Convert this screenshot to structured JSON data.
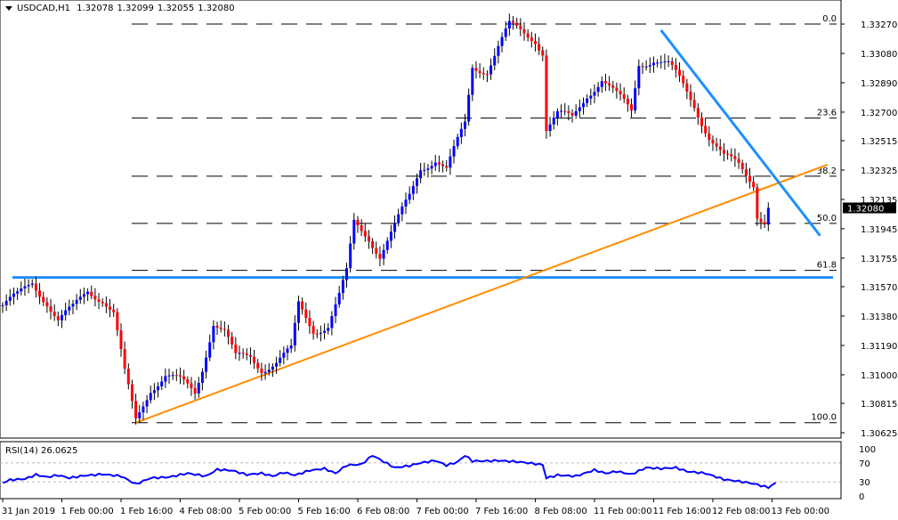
{
  "header": {
    "symbol": "USDCAD,H1",
    "open": "1.32078",
    "high": "1.32099",
    "low": "1.32055",
    "close": "1.32080"
  },
  "rsi": {
    "label": "RSI(14)",
    "value": "26.0625"
  },
  "chart_data": [
    {
      "type": "candlestick",
      "title": "USDCAD,H1",
      "ylim": [
        1.3058,
        1.3336
      ],
      "y_ticks": [
        "1.33270",
        "1.33080",
        "1.32890",
        "1.32700",
        "1.32515",
        "1.32325",
        "1.32135",
        "1.31945",
        "1.31755",
        "1.31570",
        "1.31380",
        "1.31190",
        "1.31000",
        "1.30815",
        "1.30625"
      ],
      "current_price": "1.32080",
      "x_tick_labels": [
        "31 Jan 2019",
        "1 Feb 00:00",
        "1 Feb 16:00",
        "4 Feb 08:00",
        "5 Feb 00:00",
        "5 Feb 16:00",
        "6 Feb 08:00",
        "7 Feb 00:00",
        "7 Feb 16:00",
        "8 Feb 08:00",
        "11 Feb 00:00",
        "11 Feb 16:00",
        "12 Feb 08:00",
        "13 Feb 00:00"
      ],
      "bars_per_tick": 16,
      "close_keypoints": [
        [
          0,
          1.3145
        ],
        [
          4,
          1.315
        ],
        [
          8,
          1.316
        ],
        [
          12,
          1.3148
        ],
        [
          15,
          1.3135
        ],
        [
          19,
          1.3142
        ],
        [
          23,
          1.3155
        ],
        [
          27,
          1.315
        ],
        [
          30,
          1.314
        ],
        [
          33,
          1.31
        ],
        [
          36,
          1.307
        ],
        [
          40,
          1.3092
        ],
        [
          44,
          1.31
        ],
        [
          48,
          1.3095
        ],
        [
          52,
          1.3088
        ],
        [
          54,
          1.3105
        ],
        [
          57,
          1.3135
        ],
        [
          60,
          1.3128
        ],
        [
          63,
          1.311
        ],
        [
          67,
          1.3112
        ],
        [
          70,
          1.3105
        ],
        [
          74,
          1.3108
        ],
        [
          78,
          1.3115
        ],
        [
          80,
          1.3145
        ],
        [
          84,
          1.313
        ],
        [
          88,
          1.3132
        ],
        [
          91,
          1.315
        ],
        [
          93,
          1.3165
        ],
        [
          95,
          1.3198
        ],
        [
          99,
          1.319
        ],
        [
          102,
          1.3178
        ],
        [
          106,
          1.3195
        ],
        [
          110,
          1.3215
        ],
        [
          113,
          1.3235
        ],
        [
          117,
          1.324
        ],
        [
          120,
          1.3232
        ],
        [
          123,
          1.325
        ],
        [
          125,
          1.3262
        ],
        [
          127,
          1.33
        ],
        [
          131,
          1.3298
        ],
        [
          134,
          1.3312
        ],
        [
          137,
          1.3325
        ],
        [
          140,
          1.3322
        ],
        [
          144,
          1.3318
        ],
        [
          146,
          1.331
        ],
        [
          147,
          1.326
        ],
        [
          150,
          1.3268
        ],
        [
          154,
          1.3265
        ],
        [
          158,
          1.3282
        ],
        [
          162,
          1.3292
        ],
        [
          166,
          1.328
        ],
        [
          170,
          1.327
        ],
        [
          172,
          1.3302
        ],
        [
          176,
          1.3305
        ],
        [
          180,
          1.33
        ],
        [
          183,
          1.329
        ],
        [
          187,
          1.3275
        ],
        [
          191,
          1.3255
        ],
        [
          195,
          1.324
        ],
        [
          199,
          1.3235
        ],
        [
          203,
          1.3225
        ],
        [
          204,
          1.3205
        ],
        [
          206,
          1.32
        ],
        [
          207,
          1.3208
        ]
      ],
      "fibonacci": [
        {
          "level": "0.0",
          "price": 1.3327
        },
        {
          "level": "23.6",
          "price": 1.32661
        },
        {
          "level": "38.2",
          "price": 1.32285
        },
        {
          "level": "50.0",
          "price": 1.3198
        },
        {
          "level": "61.8",
          "price": 1.31676
        },
        {
          "level": "100.0",
          "price": 1.3069
        }
      ],
      "horizontal_support": 1.3163,
      "rising_trendline": [
        [
          36,
          1.3069
        ],
        [
          223,
          1.3236
        ]
      ],
      "falling_trendline": [
        [
          178,
          1.3323
        ],
        [
          221,
          1.319
        ]
      ],
      "colors": {
        "bull": "#0000ff",
        "bear": "#ff0000",
        "support": "#1e90ff",
        "rising": "#ff8c00",
        "falling": "#1e90ff",
        "current_tag": "#000000"
      }
    },
    {
      "type": "line",
      "title": "RSI(14) 26.0625",
      "ylim": [
        0,
        100
      ],
      "y_ticks": [
        "100",
        "70",
        "30",
        "0"
      ],
      "levels": [
        70,
        30
      ],
      "keypoints": [
        [
          0,
          28
        ],
        [
          2,
          34
        ],
        [
          6,
          36
        ],
        [
          9,
          45
        ],
        [
          12,
          40
        ],
        [
          15,
          44
        ],
        [
          18,
          38
        ],
        [
          22,
          43
        ],
        [
          27,
          46
        ],
        [
          32,
          42
        ],
        [
          36,
          25
        ],
        [
          40,
          38
        ],
        [
          45,
          40
        ],
        [
          50,
          48
        ],
        [
          55,
          42
        ],
        [
          58,
          56
        ],
        [
          62,
          54
        ],
        [
          66,
          45
        ],
        [
          70,
          48
        ],
        [
          73,
          42
        ],
        [
          76,
          50
        ],
        [
          79,
          44
        ],
        [
          83,
          54
        ],
        [
          87,
          58
        ],
        [
          90,
          48
        ],
        [
          93,
          65
        ],
        [
          97,
          67
        ],
        [
          100,
          86
        ],
        [
          102,
          77
        ],
        [
          106,
          60
        ],
        [
          110,
          64
        ],
        [
          113,
          70
        ],
        [
          117,
          75
        ],
        [
          120,
          65
        ],
        [
          123,
          72
        ],
        [
          125,
          86
        ],
        [
          127,
          74
        ],
        [
          131,
          74
        ],
        [
          134,
          75
        ],
        [
          140,
          72
        ],
        [
          146,
          66
        ],
        [
          147,
          38
        ],
        [
          150,
          44
        ],
        [
          155,
          42
        ],
        [
          160,
          55
        ],
        [
          163,
          48
        ],
        [
          166,
          52
        ],
        [
          170,
          46
        ],
        [
          174,
          60
        ],
        [
          178,
          58
        ],
        [
          182,
          60
        ],
        [
          185,
          52
        ],
        [
          190,
          48
        ],
        [
          195,
          35
        ],
        [
          200,
          30
        ],
        [
          203,
          26
        ],
        [
          207,
          18
        ],
        [
          209,
          28
        ]
      ],
      "color": "#0000ff"
    }
  ]
}
